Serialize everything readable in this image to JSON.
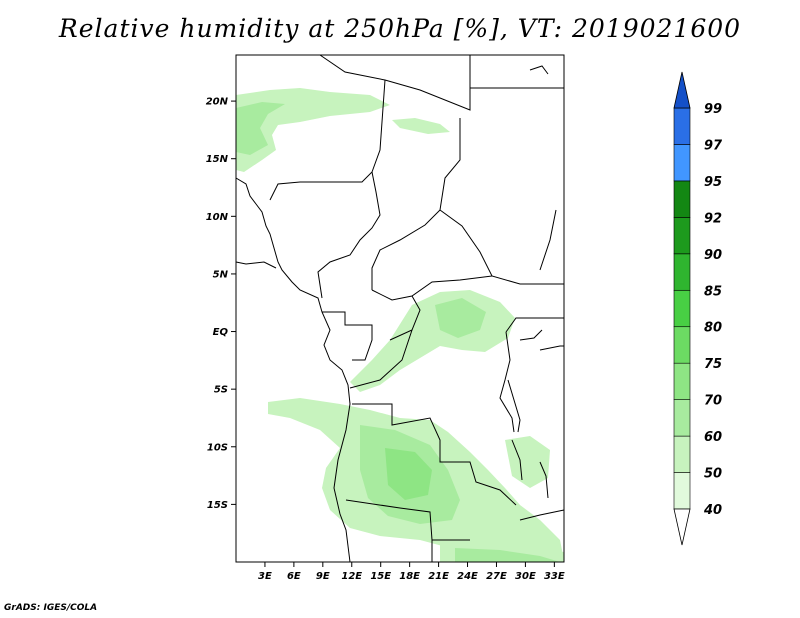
{
  "title": "Relative humidity at 250hPa [%], VT: 2019021600",
  "credit": "GrADS: IGES/COLA",
  "map": {
    "lon_range": [
      0,
      34
    ],
    "lat_range": [
      -20,
      24
    ],
    "lat_ticks": [
      {
        "value": 20,
        "label": "20N"
      },
      {
        "value": 15,
        "label": "15N"
      },
      {
        "value": 10,
        "label": "10N"
      },
      {
        "value": 5,
        "label": "5N"
      },
      {
        "value": 0,
        "label": "EQ"
      },
      {
        "value": -5,
        "label": "5S"
      },
      {
        "value": -10,
        "label": "10S"
      },
      {
        "value": -15,
        "label": "15S"
      }
    ],
    "lon_ticks": [
      {
        "value": 3,
        "label": "3E"
      },
      {
        "value": 6,
        "label": "6E"
      },
      {
        "value": 9,
        "label": "9E"
      },
      {
        "value": 12,
        "label": "12E"
      },
      {
        "value": 15,
        "label": "15E"
      },
      {
        "value": 18,
        "label": "18E"
      },
      {
        "value": 21,
        "label": "21E"
      },
      {
        "value": 24,
        "label": "24E"
      },
      {
        "value": 27,
        "label": "27E"
      },
      {
        "value": 30,
        "label": "30E"
      },
      {
        "value": 33,
        "label": "33E"
      }
    ]
  },
  "colorbar": {
    "levels": [
      {
        "label": "40",
        "color": "#ffffff"
      },
      {
        "label": "50",
        "color": "#e1fadc"
      },
      {
        "label": "60",
        "color": "#c7f3be"
      },
      {
        "label": "70",
        "color": "#a8eb9f"
      },
      {
        "label": "75",
        "color": "#8ee584"
      },
      {
        "label": "80",
        "color": "#6cdb63"
      },
      {
        "label": "85",
        "color": "#48cf44"
      },
      {
        "label": "90",
        "color": "#2fb52f"
      },
      {
        "label": "92",
        "color": "#1d9a1d"
      },
      {
        "label": "95",
        "color": "#138713"
      },
      {
        "label": "97",
        "color": "#4196ff"
      },
      {
        "label": "99",
        "color": "#2a6fe6"
      }
    ],
    "top_arrow_color": "#1450c8"
  }
}
